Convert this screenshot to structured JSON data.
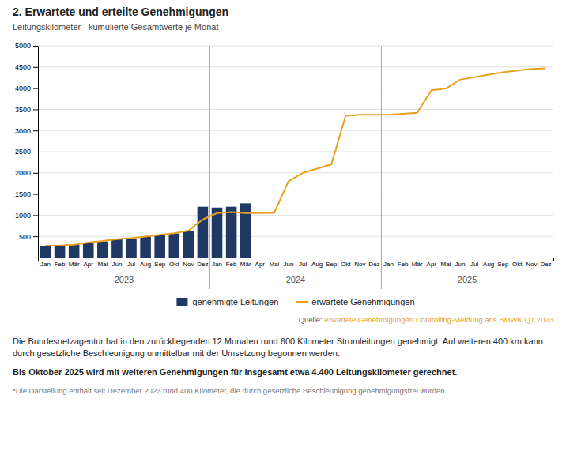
{
  "chart_data": {
    "type": "bar",
    "title": "2. Erwartete und erteilte Genehmigungen",
    "subtitle": "Leitungskilometer - kumulierte Gesamtwerte je Monat",
    "categories": [
      "Jan",
      "Feb",
      "Mär",
      "Apr",
      "Mai",
      "Jun",
      "Jul",
      "Aug",
      "Sep",
      "Okt",
      "Nov",
      "Dez",
      "Jan",
      "Feb",
      "Mär",
      "Apr",
      "Mai",
      "Jun",
      "Jul",
      "Aug",
      "Sep",
      "Okt",
      "Nov",
      "Dez",
      "Jan",
      "Feb",
      "Mär",
      "Apr",
      "Mai",
      "Jun",
      "Jul",
      "Aug",
      "Sep",
      "Okt",
      "Nov",
      "Dez"
    ],
    "series": [
      {
        "name": "genehmigte Leitungen",
        "type": "bar",
        "color": "#1f3864",
        "values": [
          280,
          280,
          300,
          350,
          380,
          430,
          450,
          490,
          530,
          570,
          630,
          1200,
          1180,
          1200,
          1280,
          0,
          0,
          0,
          0,
          0,
          0,
          0,
          0,
          0,
          0,
          0,
          0,
          0,
          0,
          0,
          0,
          0,
          0,
          0,
          0,
          0
        ]
      },
      {
        "name": "erwartete Genehmigungen",
        "type": "line",
        "color": "#e8a020",
        "values": [
          280,
          285,
          305,
          355,
          390,
          435,
          455,
          495,
          535,
          575,
          635,
          900,
          1050,
          1075,
          1050,
          1050,
          1055,
          1800,
          2000,
          2100,
          2200,
          3350,
          3370,
          3370,
          3370,
          3395,
          3420,
          3950,
          3990,
          4200,
          4260,
          4320,
          4375,
          4415,
          4455,
          4470
        ]
      }
    ],
    "ylim": [
      0,
      5000
    ],
    "yticks": [
      500,
      1000,
      1500,
      2000,
      2500,
      3000,
      3500,
      4000,
      4500,
      5000
    ],
    "grid": true,
    "annotations": [
      "2023",
      "2024",
      "2025"
    ],
    "source": [
      "Quelle:",
      "erwartete Genehmigungen Controlling-Meldung ans BMWK Q1 2023"
    ],
    "notes": [
      "Die Bundesnetzagentur hat in den zurückliegenden 12 Monaten rund 600 Kilometer Stromleitungen genehmigt. Auf weiteren 400 km kann durch gesetzliche Beschleunigung unmittelbar mit der Umsetzung begonnen werden.",
      "Bis Oktober 2025 wird mit weiteren Genehmigungen für insgesamt etwa 4.400 Leitungskilometer gerechnet.",
      "*Die Darstellung enthält seit Dezember 2023 rund 400 Kilometer, die durch gesetzliche Beschleunigung genehmigungsfrei wurden."
    ]
  }
}
